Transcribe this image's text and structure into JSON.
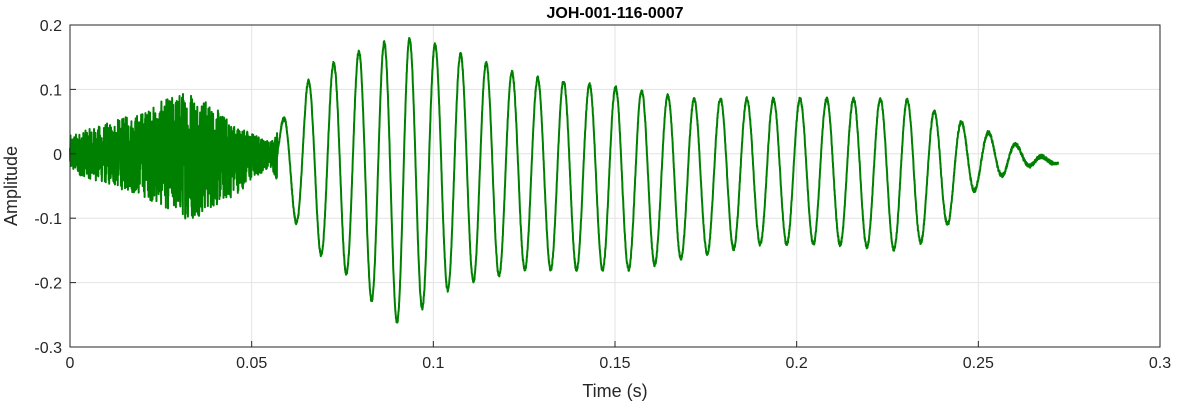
{
  "chart_data": {
    "type": "line",
    "title": "JOH-001-116-0007",
    "xlabel": "Time (s)",
    "ylabel": "Amplitude",
    "xlim": [
      0,
      0.3
    ],
    "ylim": [
      -0.3,
      0.2
    ],
    "xticks": [
      0,
      0.05,
      0.1,
      0.15,
      0.2,
      0.25,
      0.3
    ],
    "xtick_labels": [
      "0",
      "0.05",
      "0.1",
      "0.15",
      "0.2",
      "0.25",
      "0.3"
    ],
    "yticks": [
      -0.3,
      -0.2,
      -0.1,
      0,
      0.1,
      0.2
    ],
    "ytick_labels": [
      "-0.3",
      "-0.2",
      "-0.1",
      "0",
      "0.1",
      "0.2"
    ],
    "grid": true,
    "legend": "none",
    "series": [
      {
        "color": "#008000",
        "x_range": [
          0,
          0.272
        ],
        "description_points": [
          {
            "t": 0.0,
            "peak_pos": 0.03,
            "peak_neg": -0.03
          },
          {
            "t": 0.01,
            "peak_pos": 0.05,
            "peak_neg": -0.05
          },
          {
            "t": 0.02,
            "peak_pos": 0.07,
            "peak_neg": -0.07
          },
          {
            "t": 0.033,
            "peak_pos": 0.11,
            "peak_neg": -0.11
          },
          {
            "t": 0.045,
            "peak_pos": 0.05,
            "peak_neg": -0.07
          },
          {
            "t": 0.055,
            "peak_pos": 0.02,
            "peak_neg": -0.02
          },
          {
            "t": 0.065,
            "peak_pos": 0.11,
            "peak_neg": -0.14
          },
          {
            "t": 0.075,
            "peak_pos": 0.15,
            "peak_neg": -0.18
          },
          {
            "t": 0.085,
            "peak_pos": 0.17,
            "peak_neg": -0.24
          },
          {
            "t": 0.092,
            "peak_pos": 0.18,
            "peak_neg": -0.27
          },
          {
            "t": 0.1,
            "peak_pos": 0.17,
            "peak_neg": -0.22
          },
          {
            "t": 0.11,
            "peak_pos": 0.15,
            "peak_neg": -0.2
          },
          {
            "t": 0.125,
            "peak_pos": 0.12,
            "peak_neg": -0.18
          },
          {
            "t": 0.14,
            "peak_pos": 0.11,
            "peak_neg": -0.18
          },
          {
            "t": 0.155,
            "peak_pos": 0.1,
            "peak_neg": -0.18
          },
          {
            "t": 0.17,
            "peak_pos": 0.085,
            "peak_neg": -0.16
          },
          {
            "t": 0.19,
            "peak_pos": 0.085,
            "peak_neg": -0.14
          },
          {
            "t": 0.21,
            "peak_pos": 0.085,
            "peak_neg": -0.14
          },
          {
            "t": 0.23,
            "peak_pos": 0.085,
            "peak_neg": -0.15
          },
          {
            "t": 0.24,
            "peak_pos": 0.06,
            "peak_neg": -0.12
          },
          {
            "t": 0.25,
            "peak_pos": 0.04,
            "peak_neg": -0.05
          },
          {
            "t": 0.262,
            "peak_pos": 0.01,
            "peak_neg": -0.02
          },
          {
            "t": 0.272,
            "peak_pos": -0.015,
            "peak_neg": -0.015
          }
        ]
      }
    ]
  }
}
